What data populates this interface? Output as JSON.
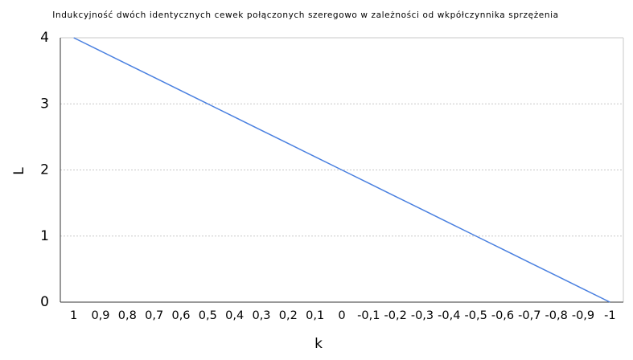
{
  "chart_data": {
    "type": "line",
    "title": "Indukcyjność dwóch identycznych cewek połączonych szeregowo w zależności od wkpółczynnika sprzężenia",
    "x_label": "k",
    "y_label": "L",
    "categories": [
      "1",
      "0,9",
      "0,8",
      "0,7",
      "0,6",
      "0,5",
      "0,4",
      "0,3",
      "0,2",
      "0,1",
      "0",
      "-0,1",
      "-0,2",
      "-0,3",
      "-0,4",
      "-0,5",
      "-0,6",
      "-0,7",
      "-0,8",
      "-0,9",
      "-1"
    ],
    "values": [
      4,
      3.8,
      3.6,
      3.4,
      3.2,
      3,
      2.8,
      2.6,
      2.4,
      2.2,
      2,
      1.8,
      1.6,
      1.4,
      1.2,
      1,
      0.8,
      0.6,
      0.4,
      0.2,
      0
    ],
    "color": "#4a80e0",
    "ylim": [
      0,
      4
    ],
    "yticks": [
      0,
      1,
      2,
      3,
      4
    ],
    "grid": true
  }
}
